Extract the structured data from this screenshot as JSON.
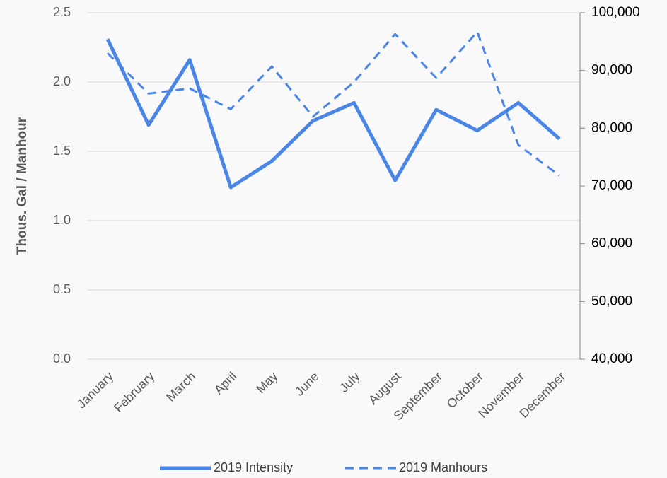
{
  "chart_data": {
    "type": "line",
    "y_label": "Thous. Gal / Manhour",
    "categories": [
      "January",
      "February",
      "March",
      "April",
      "May",
      "June",
      "July",
      "August",
      "September",
      "October",
      "November",
      "December"
    ],
    "series": [
      {
        "name": "2019 Intensity",
        "color": "#4a86e8",
        "linestyle": "solid",
        "values": [
          2.31,
          1.69,
          2.16,
          1.24,
          1.43,
          1.72,
          1.85,
          1.29,
          1.8,
          1.65,
          1.85,
          1.59
        ]
      },
      {
        "name": "2019 Manhours",
        "color": "#4a86e8",
        "linestyle": "dashed",
        "axis": "y2",
        "values": [
          93000,
          86000,
          86900,
          83300,
          90700,
          82000,
          88000,
          96300,
          88700,
          96700,
          77100,
          71800
        ]
      }
    ],
    "ylim": [
      0,
      2.5
    ],
    "yticks": [
      {
        "value": 0,
        "label": "0.0"
      },
      0.5,
      {
        "value": 1,
        "label": "1.0"
      },
      1.5,
      {
        "value": 2,
        "label": "2.0"
      },
      2.5
    ],
    "y2lim": [
      40000,
      100000
    ],
    "y2ticks": [
      {
        "value": 40000,
        "label": "40,000"
      },
      {
        "value": 50000,
        "label": "50,000"
      },
      {
        "value": 60000,
        "label": "60,000"
      },
      {
        "value": 70000,
        "label": "70,000"
      },
      {
        "value": 80000,
        "label": "80,000"
      },
      {
        "value": 90000,
        "label": "90,000"
      },
      {
        "value": 100000,
        "label": "100,000"
      }
    ],
    "grid": true,
    "legend": "bottom"
  }
}
